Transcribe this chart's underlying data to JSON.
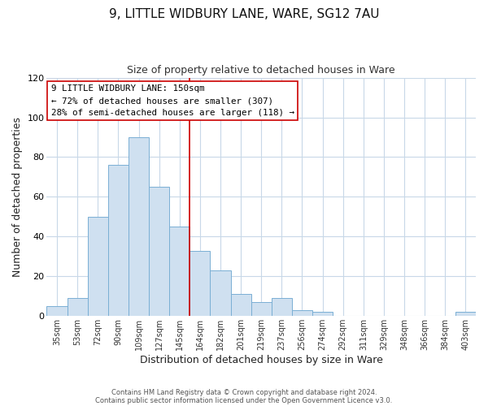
{
  "title": "9, LITTLE WIDBURY LANE, WARE, SG12 7AU",
  "subtitle": "Size of property relative to detached houses in Ware",
  "xlabel": "Distribution of detached houses by size in Ware",
  "ylabel": "Number of detached properties",
  "bar_labels": [
    "35sqm",
    "53sqm",
    "72sqm",
    "90sqm",
    "109sqm",
    "127sqm",
    "145sqm",
    "164sqm",
    "182sqm",
    "201sqm",
    "219sqm",
    "237sqm",
    "256sqm",
    "274sqm",
    "292sqm",
    "311sqm",
    "329sqm",
    "348sqm",
    "366sqm",
    "384sqm",
    "403sqm"
  ],
  "bar_values": [
    5,
    9,
    50,
    76,
    90,
    65,
    45,
    33,
    23,
    11,
    7,
    9,
    3,
    2,
    0,
    0,
    0,
    0,
    0,
    0,
    2
  ],
  "bar_color": "#cfe0f0",
  "bar_edge_color": "#7aafd4",
  "vline_index": 6,
  "vline_color": "#cc0000",
  "ylim": [
    0,
    120
  ],
  "yticks": [
    0,
    20,
    40,
    60,
    80,
    100,
    120
  ],
  "annotation_line1": "9 LITTLE WIDBURY LANE: 150sqm",
  "annotation_line2": "← 72% of detached houses are smaller (307)",
  "annotation_line3": "28% of semi-detached houses are larger (118) →",
  "footer1": "Contains HM Land Registry data © Crown copyright and database right 2024.",
  "footer2": "Contains public sector information licensed under the Open Government Licence v3.0.",
  "background_color": "#ffffff",
  "grid_color": "#c8d8e8",
  "title_fontsize": 11,
  "subtitle_fontsize": 9,
  "axis_label_fontsize": 9,
  "tick_fontsize": 7,
  "footer_fontsize": 6
}
